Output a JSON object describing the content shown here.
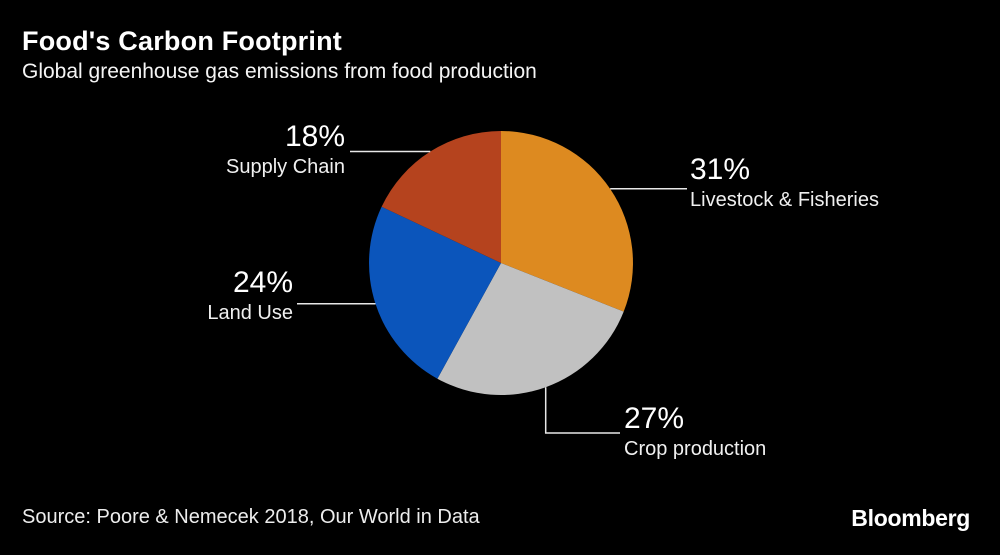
{
  "header": {
    "title": "Food's Carbon Footprint",
    "subtitle": "Global greenhouse gas emissions from food production"
  },
  "footer": {
    "source": "Source: Poore & Nemecek 2018, Our World in Data",
    "brand": "Bloomberg"
  },
  "colors": {
    "background": "#000000",
    "title_text": "#ffffff",
    "body_text": "#f0f0f0",
    "leader_line": "#e8e8e8",
    "livestock_orange": "#dd8a20",
    "crop_gray": "#c1c1c1",
    "land_blue": "#0b55bb",
    "supply_brick": "#b5431e"
  },
  "chart_data": {
    "type": "pie",
    "title": "Food's Carbon Footprint",
    "subtitle": "Global greenhouse gas emissions from food production",
    "start_angle_deg_from_top": 0,
    "direction": "clockwise",
    "legend_position": "none",
    "label_style": "outside with leader lines",
    "slices": [
      {
        "label": "Livestock & Fisheries",
        "value": 31,
        "pct_label": "31%",
        "color": "#dd8a20"
      },
      {
        "label": "Crop production",
        "value": 27,
        "pct_label": "27%",
        "color": "#c1c1c1"
      },
      {
        "label": "Land Use",
        "value": 24,
        "pct_label": "24%",
        "color": "#0b55bb"
      },
      {
        "label": "Supply Chain",
        "value": 18,
        "pct_label": "18%",
        "color": "#b5431e"
      }
    ]
  }
}
